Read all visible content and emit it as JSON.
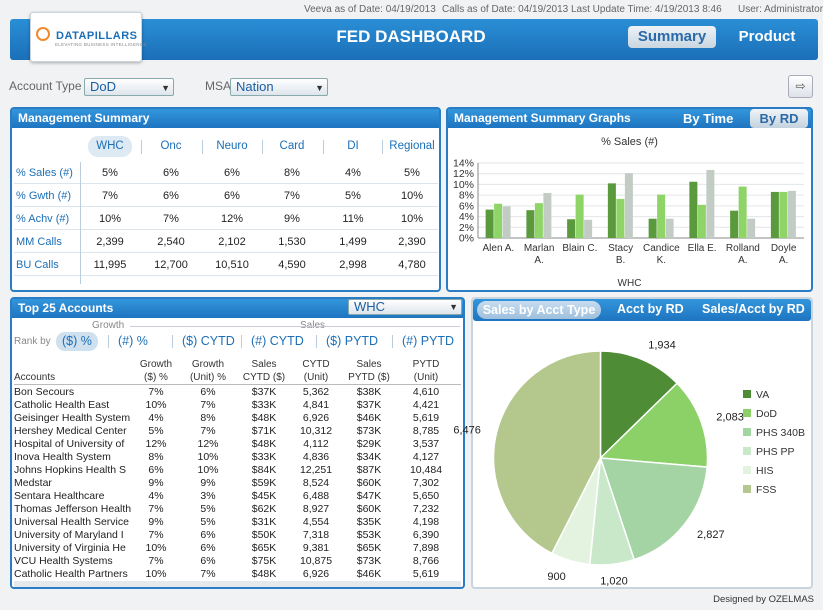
{
  "header": {
    "veeva": "Veeva as of Date: 04/19/2013",
    "calls": "Calls as of Date: 04/19/2013",
    "update": "Last Update Time: 4/19/2013 8:46",
    "user": "User: Administrator",
    "title": "FED DASHBOARD",
    "tabs": [
      "Summary",
      "Product"
    ],
    "logo": "DATAPILLARS",
    "logo_tagline": "ELEVATING BUSINESS INTELLIGENCE"
  },
  "filters": {
    "account_type_label": "Account Type",
    "account_type": "DoD",
    "msa_label": "MSA",
    "msa": "Nation"
  },
  "mgmt_summary": {
    "title": "Management Summary",
    "columns": [
      "WHC",
      "Onc",
      "Neuro",
      "Card",
      "DI",
      "Regional"
    ],
    "rows": [
      {
        "label": "% Sales (#)",
        "values": [
          "5%",
          "6%",
          "6%",
          "8%",
          "4%",
          "5%"
        ]
      },
      {
        "label": "% Gwth (#)",
        "values": [
          "7%",
          "6%",
          "6%",
          "7%",
          "5%",
          "10%"
        ]
      },
      {
        "label": "% Achv (#)",
        "values": [
          "10%",
          "7%",
          "12%",
          "9%",
          "11%",
          "10%"
        ]
      },
      {
        "label": "MM Calls",
        "values": [
          "2,399",
          "2,540",
          "2,102",
          "1,530",
          "1,499",
          "2,390"
        ]
      },
      {
        "label": "BU Calls",
        "values": [
          "11,995",
          "12,700",
          "10,510",
          "4,590",
          "2,998",
          "4,780"
        ]
      }
    ]
  },
  "graphs": {
    "title": "Management Summary Graphs",
    "tab_time": "By Time",
    "tab_rd": "By RD"
  },
  "chart_data": {
    "type": "bar",
    "title": "% Sales (#)",
    "xlabel": "WHC",
    "ylabel": "",
    "ylim": [
      0,
      14
    ],
    "yticks": [
      "0%",
      "2%",
      "4%",
      "6%",
      "8%",
      "10%",
      "12%",
      "14%"
    ],
    "categories": [
      [
        "Alen A."
      ],
      [
        "Marlan",
        "A."
      ],
      [
        "Blain C."
      ],
      [
        "Stacy",
        "B."
      ],
      [
        "Candice",
        "K."
      ],
      [
        "Ella E."
      ],
      [
        "Rolland",
        "A."
      ],
      [
        "Doyle",
        "A."
      ]
    ],
    "series": [
      {
        "color": "#5b9a3c",
        "values": [
          5.3,
          5.2,
          3.5,
          10.2,
          3.6,
          10.5,
          5.1,
          8.6
        ]
      },
      {
        "color": "#8fd467",
        "values": [
          6.4,
          6.5,
          8.1,
          7.3,
          8.1,
          6.2,
          9.6,
          8.6
        ]
      },
      {
        "color": "#c2ccc4",
        "values": [
          5.9,
          8.4,
          3.4,
          12.1,
          3.6,
          12.7,
          3.6,
          8.8
        ]
      }
    ]
  },
  "top25": {
    "title": "Top 25 Accounts",
    "selector": "WHC",
    "growth_label": "Growth",
    "sales_label": "Sales",
    "rank_label": "Rank by",
    "rank_options": [
      "($) %",
      "(#) %",
      "($) CYTD",
      "(#) CYTD",
      "($) PYTD",
      "(#) PYTD"
    ],
    "columns": [
      "Accounts",
      "Growth ($) %",
      "Growth (Unit) %",
      "Sales CYTD ($)",
      "CYTD (Unit)",
      "Sales PYTD ($)",
      "PYTD (Unit)"
    ],
    "col_lines": [
      [
        "",
        "Accounts"
      ],
      [
        "Growth",
        "($) %"
      ],
      [
        "Growth",
        "(Unit) %"
      ],
      [
        "Sales",
        "CYTD ($)"
      ],
      [
        "CYTD",
        "(Unit)"
      ],
      [
        "Sales",
        "PYTD ($)"
      ],
      [
        "PYTD",
        "(Unit)"
      ]
    ],
    "rows": [
      [
        "Bon Secours",
        "7%",
        "6%",
        "$37K",
        "5,362",
        "$38K",
        "4,610"
      ],
      [
        "Catholic Health East",
        "10%",
        "7%",
        "$33K",
        "4,841",
        "$37K",
        "4,421"
      ],
      [
        "Geisinger Health System",
        "4%",
        "8%",
        "$48K",
        "6,926",
        "$46K",
        "5,619"
      ],
      [
        "Hershey Medical Center",
        "5%",
        "7%",
        "$71K",
        "10,312",
        "$73K",
        "8,785"
      ],
      [
        "Hospital of University of",
        "12%",
        "12%",
        "$48K",
        "4,112",
        "$29K",
        "3,537"
      ],
      [
        "Inova Health System",
        "8%",
        "10%",
        "$33K",
        "4,836",
        "$34K",
        "4,127"
      ],
      [
        "Johns Hopkins Health S",
        "6%",
        "10%",
        "$84K",
        "12,251",
        "$87K",
        "10,484"
      ],
      [
        "Medstar",
        "9%",
        "9%",
        "$59K",
        "8,524",
        "$60K",
        "7,302"
      ],
      [
        "Sentara Healthcare",
        "4%",
        "3%",
        "$45K",
        "6,488",
        "$47K",
        "5,650"
      ],
      [
        "Thomas Jefferson Health",
        "7%",
        "5%",
        "$62K",
        "8,927",
        "$60K",
        "7,232"
      ],
      [
        "Universal Health Service",
        "9%",
        "5%",
        "$31K",
        "4,554",
        "$35K",
        "4,198"
      ],
      [
        "University of Maryland I",
        "7%",
        "6%",
        "$50K",
        "7,318",
        "$53K",
        "6,390"
      ],
      [
        "University of Virginia He",
        "10%",
        "6%",
        "$65K",
        "9,381",
        "$65K",
        "7,898"
      ],
      [
        "VCU Health Systems",
        "7%",
        "6%",
        "$75K",
        "10,875",
        "$73K",
        "8,766"
      ],
      [
        "Catholic Health Partners",
        "10%",
        "7%",
        "$48K",
        "6,926",
        "$46K",
        "5,619"
      ]
    ]
  },
  "sales_panel": {
    "tabs": [
      "Sales by Acct Type",
      "Acct by RD",
      "Sales/Acct by RD"
    ]
  },
  "pie": {
    "type": "pie",
    "slices": [
      {
        "label": "VA",
        "value": 1934,
        "display": "1,934",
        "color": "#4e8c35"
      },
      {
        "label": "DoD",
        "value": 2083,
        "display": "2,083",
        "color": "#8bd168"
      },
      {
        "label": "PHS 340B",
        "value": 2827,
        "display": "2,827",
        "color": "#a4d4a4"
      },
      {
        "label": "PHS PP",
        "value": 1020,
        "display": "1,020",
        "color": "#c9e8c9"
      },
      {
        "label": "HIS",
        "value": 900,
        "display": "900",
        "color": "#e4f3e0"
      },
      {
        "label": "FSS",
        "value": 6476,
        "display": "6,476",
        "color": "#b4c88e"
      }
    ]
  },
  "footer": "Designed by OZELMAS"
}
